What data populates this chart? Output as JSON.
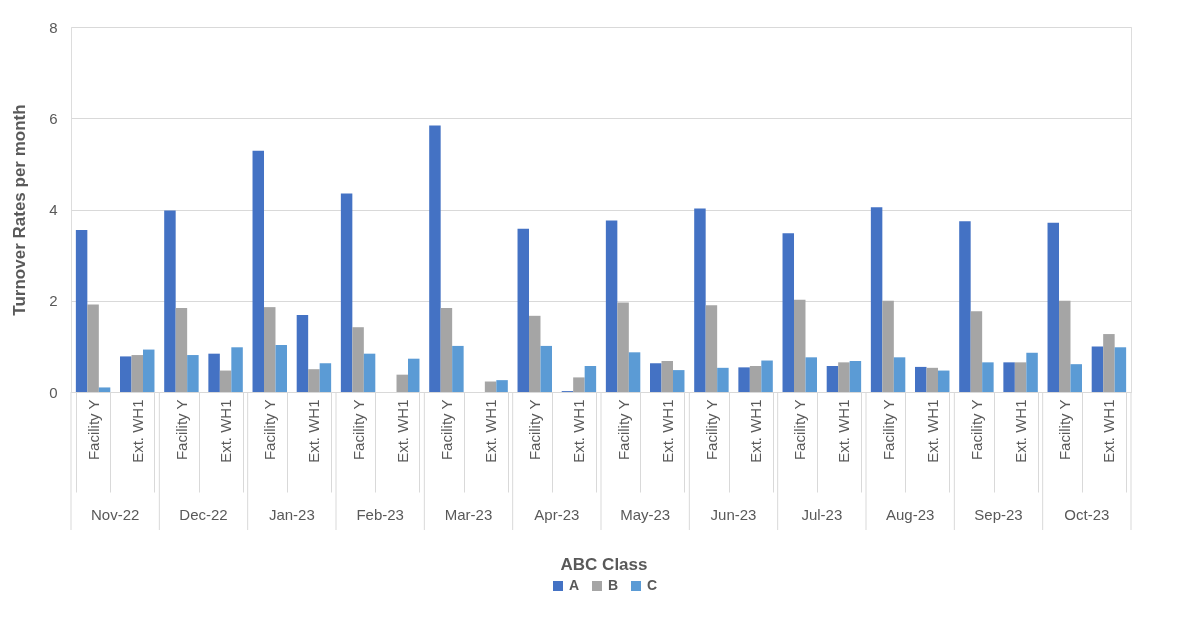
{
  "chart_data": {
    "type": "bar",
    "ylabel": "Turnover Rates per month",
    "legend_title": "ABC Class",
    "categories": [
      "Facility Y",
      "Ext. WH1",
      "Facility Y",
      "Ext. WH1",
      "Facility Y",
      "Ext. WH1",
      "Facility Y",
      "Ext. WH1",
      "Facility Y",
      "Ext. WH1",
      "Facility Y",
      "Ext. WH1",
      "Facility Y",
      "Ext. WH1",
      "Facility Y",
      "Ext. WH1",
      "Facility Y",
      "Ext. WH1",
      "Facility Y",
      "Ext. WH1",
      "Facility Y",
      "Ext. WH1",
      "Facility Y",
      "Ext. WH1"
    ],
    "annotations": [
      "Nov-22",
      "Dec-22",
      "Jan-23",
      "Feb-23",
      "Mar-23",
      "Apr-23",
      "May-23",
      "Jun-23",
      "Jul-23",
      "Aug-23",
      "Sep-23",
      "Oct-23"
    ],
    "series": [
      {
        "name": "A",
        "color": "#4472c4",
        "values": [
          3.55,
          0.78,
          3.98,
          0.84,
          5.29,
          1.69,
          4.35,
          null,
          5.84,
          null,
          3.58,
          0.02,
          3.76,
          0.63,
          4.02,
          0.54,
          3.48,
          0.57,
          4.05,
          0.55,
          3.74,
          0.65,
          3.71,
          1.0
        ]
      },
      {
        "name": "B",
        "color": "#a5a5a5",
        "values": [
          1.92,
          0.81,
          1.84,
          0.47,
          1.86,
          0.5,
          1.42,
          0.38,
          1.84,
          0.23,
          1.67,
          0.32,
          1.96,
          0.68,
          1.9,
          0.57,
          2.02,
          0.65,
          2.0,
          0.53,
          1.77,
          0.65,
          2.0,
          1.27
        ]
      },
      {
        "name": "C",
        "color": "#5b9bd5",
        "values": [
          0.1,
          0.93,
          0.81,
          0.98,
          1.03,
          0.63,
          0.84,
          0.73,
          1.01,
          0.26,
          1.01,
          0.57,
          0.87,
          0.48,
          0.53,
          0.69,
          0.76,
          0.68,
          0.76,
          0.47,
          0.65,
          0.86,
          0.61,
          0.98
        ]
      }
    ],
    "ylim": [
      0,
      8
    ],
    "yticks": [
      0,
      2,
      4,
      6,
      8
    ],
    "grid": "y",
    "legend": "bottom"
  }
}
